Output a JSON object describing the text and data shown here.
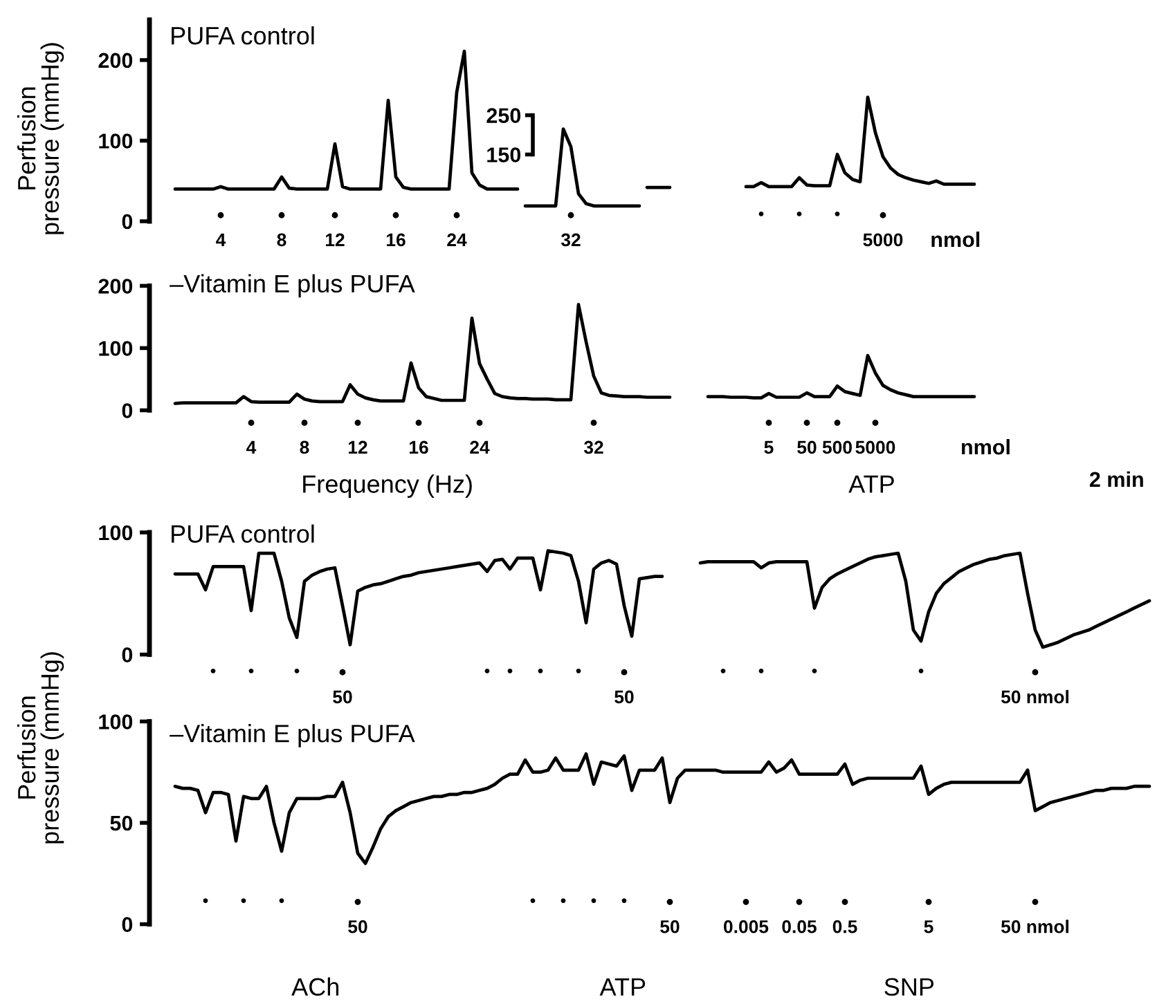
{
  "chart_data": [
    {
      "type": "line",
      "title": "PUFA control",
      "ylabel": "Perfusion\npressure (mmHg)",
      "categories": [
        null,
        null,
        null,
        null,
        null,
        null,
        null,
        null,
        null,
        "4",
        null,
        null,
        null,
        null,
        null,
        null,
        null,
        "8",
        null,
        null,
        null,
        null,
        null,
        null,
        "12",
        null,
        null,
        null,
        null,
        null,
        null,
        null,
        "16",
        null,
        null,
        null,
        null,
        null,
        null,
        null,
        "24",
        null,
        null,
        null,
        null,
        null,
        null,
        null,
        null,
        null,
        null,
        null,
        null,
        null,
        null,
        "32",
        null,
        null,
        null,
        null,
        null,
        null,
        null,
        null,
        null,
        null,
        null,
        null,
        null,
        null,
        null,
        null,
        null,
        null,
        null,
        null,
        null,
        null,
        null,
        null,
        "•",
        null,
        null,
        null,
        null,
        "•",
        null,
        null,
        null,
        null,
        "•",
        null,
        null,
        null,
        null,
        null,
        "5000",
        null,
        null,
        null,
        null,
        null,
        null,
        null,
        null,
        null,
        null,
        null,
        null,
        null,
        null,
        null,
        null,
        null,
        null,
        null,
        null,
        null,
        null,
        null,
        null,
        null,
        null,
        null,
        null,
        null,
        null,
        null,
        null,
        null,
        null,
        null
      ],
      "ylim": [
        0,
        250
      ],
      "yticks": [
        0,
        100,
        200
      ],
      "y2lim": [
        -20,
        493
      ],
      "y2ticks": [
        150,
        250
      ],
      "tick_labels": "y",
      "series": [
        {
          "color": "#000000",
          "values": [
            null,
            null,
            null,
            40,
            40,
            40,
            40,
            40,
            40,
            43,
            40,
            40,
            40,
            40,
            40,
            40,
            40,
            55,
            41,
            40,
            40,
            40,
            40,
            40,
            96,
            43,
            40,
            40,
            40,
            40,
            40,
            150,
            55,
            42,
            40,
            40,
            40,
            40,
            40,
            40,
            160,
            211,
            60,
            45,
            40,
            40,
            40,
            40,
            40,
            null,
            null,
            null,
            null,
            null,
            null,
            null,
            null,
            null,
            null,
            null,
            null,
            null,
            null,
            null,
            null,
            42,
            42,
            42,
            42,
            null,
            null,
            null,
            null,
            null,
            null,
            null,
            null,
            null,
            43,
            43,
            48,
            43,
            43,
            43,
            43,
            54,
            45,
            44,
            44,
            44,
            83,
            60,
            52,
            49,
            154,
            110,
            80,
            66,
            58,
            54,
            51,
            49,
            47,
            50,
            46,
            46,
            46,
            46,
            46,
            null,
            null,
            null,
            null,
            null,
            null,
            null,
            null,
            null,
            null,
            null,
            null,
            null,
            null,
            null,
            null,
            null,
            null,
            null,
            null,
            null,
            null,
            null
          ]
        },
        {
          "color": "#000000",
          "axis": "y2",
          "values": [
            null,
            null,
            null,
            null,
            null,
            null,
            null,
            null,
            null,
            null,
            null,
            null,
            null,
            null,
            null,
            null,
            null,
            null,
            null,
            null,
            null,
            null,
            null,
            null,
            null,
            null,
            null,
            null,
            null,
            null,
            null,
            null,
            null,
            null,
            null,
            null,
            null,
            null,
            null,
            null,
            null,
            null,
            null,
            null,
            null,
            null,
            null,
            null,
            null,
            19,
            19,
            19,
            19,
            19,
            215,
            170,
            50,
            25,
            19,
            19,
            19,
            19,
            19,
            19,
            19,
            null,
            null,
            null,
            null,
            null,
            null,
            null,
            null,
            null,
            null,
            null,
            null,
            null,
            null,
            null,
            null,
            null,
            null,
            null,
            null,
            null,
            null,
            null,
            null,
            null,
            null,
            null,
            null,
            null,
            null,
            null,
            null,
            null,
            null,
            null,
            null,
            null,
            null,
            null,
            null,
            null,
            null,
            null,
            null,
            null,
            null,
            null,
            null,
            null,
            null,
            null,
            null,
            null,
            null,
            null,
            null,
            null,
            null,
            null,
            null,
            null,
            null,
            null,
            null,
            null,
            null,
            null
          ]
        }
      ],
      "annotations": [
        "nmol"
      ]
    },
    {
      "type": "line",
      "title": "–Vitamin E plus PUFA",
      "categories": [
        null,
        null,
        null,
        null,
        null,
        null,
        null,
        null,
        null,
        null,
        null,
        null,
        null,
        "4",
        null,
        null,
        null,
        null,
        null,
        null,
        "8",
        null,
        null,
        null,
        null,
        null,
        null,
        "12",
        null,
        null,
        null,
        null,
        null,
        null,
        null,
        "16",
        null,
        null,
        null,
        null,
        null,
        null,
        null,
        "24",
        null,
        null,
        null,
        null,
        null,
        null,
        null,
        null,
        null,
        null,
        null,
        null,
        null,
        null,
        "32",
        null,
        null,
        null,
        null,
        null,
        null,
        null,
        null,
        null,
        null,
        null,
        null,
        null,
        null,
        null,
        null,
        null,
        null,
        null,
        null,
        null,
        null,
        "5",
        null,
        null,
        null,
        null,
        "50",
        null,
        null,
        null,
        "500",
        null,
        null,
        null,
        null,
        "5000",
        null,
        null,
        null,
        null,
        null,
        null,
        null,
        null,
        null,
        null,
        null,
        null,
        null,
        null,
        null,
        null,
        null,
        null,
        null,
        null,
        null,
        null,
        null,
        null,
        null,
        null,
        null,
        null,
        null,
        null,
        null,
        null,
        null,
        null,
        null,
        null
      ],
      "ylim": [
        0,
        200
      ],
      "yticks": [
        0,
        100,
        200
      ],
      "tick_labels": "y",
      "series": [
        {
          "color": "#000000",
          "values": [
            null,
            null,
            null,
            11,
            12,
            12,
            12,
            12,
            12,
            12,
            12,
            12,
            22,
            14,
            13,
            13,
            13,
            13,
            13,
            26,
            18,
            15,
            14,
            14,
            14,
            14,
            41,
            26,
            20,
            17,
            15,
            15,
            15,
            15,
            76,
            36,
            22,
            19,
            16,
            16,
            16,
            16,
            148,
            75,
            50,
            27,
            22,
            20,
            19,
            19,
            18,
            18,
            18,
            17,
            17,
            17,
            170,
            110,
            55,
            28,
            24,
            23,
            22,
            22,
            22,
            21,
            21,
            21,
            21,
            null,
            null,
            null,
            null,
            22,
            22,
            22,
            21,
            21,
            21,
            20,
            20,
            27,
            21,
            21,
            21,
            21,
            28,
            22,
            22,
            22,
            39,
            30,
            27,
            24,
            88,
            60,
            40,
            33,
            28,
            25,
            22,
            22,
            22,
            22,
            22,
            22,
            22,
            22,
            22,
            null,
            null,
            null,
            null,
            null,
            null,
            null,
            null,
            null,
            null,
            null,
            null,
            null,
            null,
            null,
            null,
            null,
            null,
            null,
            null,
            null,
            null,
            null
          ]
        }
      ],
      "annotations": [
        "nmol",
        "Frequency (Hz)",
        "ATP",
        "2 min"
      ]
    },
    {
      "type": "line",
      "title": "PUFA control",
      "categories": [
        null,
        null,
        null,
        null,
        null,
        null,
        null,
        null,
        "•",
        null,
        null,
        null,
        null,
        "•",
        null,
        null,
        null,
        null,
        null,
        "•",
        null,
        null,
        null,
        null,
        null,
        "50",
        null,
        null,
        null,
        null,
        null,
        null,
        null,
        null,
        null,
        null,
        null,
        null,
        null,
        null,
        null,
        null,
        null,
        null,
        "•",
        null,
        null,
        "•",
        null,
        null,
        null,
        "•",
        null,
        null,
        null,
        null,
        "•",
        null,
        null,
        null,
        null,
        null,
        "50",
        null,
        null,
        null,
        null,
        null,
        null,
        null,
        null,
        null,
        null,
        null,
        null,
        "•",
        null,
        null,
        null,
        null,
        "•",
        null,
        null,
        null,
        null,
        null,
        null,
        "•",
        null,
        null,
        null,
        null,
        null,
        null,
        null,
        null,
        null,
        null,
        null,
        null,
        null,
        "•",
        null,
        null,
        null,
        null,
        null,
        null,
        null,
        null,
        null,
        null,
        null,
        null,
        null,
        null,
        "50 nmol",
        null,
        null,
        null,
        null,
        null,
        null,
        null,
        null,
        null,
        null,
        null,
        null,
        null,
        null,
        null
      ],
      "ylim": [
        0,
        100
      ],
      "yticks": [
        0,
        100
      ],
      "tick_labels": "y",
      "series": [
        {
          "color": "#000000",
          "values": [
            null,
            null,
            null,
            66,
            66,
            66,
            66,
            53,
            72,
            72,
            72,
            72,
            72,
            36,
            83,
            83,
            83,
            60,
            30,
            14,
            60,
            65,
            68,
            70,
            71,
            40,
            8,
            52,
            55,
            57,
            58,
            60,
            62,
            64,
            65,
            67,
            68,
            69,
            70,
            71,
            72,
            73,
            74,
            75,
            68,
            77,
            78,
            70,
            79,
            79,
            79,
            53,
            85,
            84,
            83,
            81,
            60,
            26,
            70,
            75,
            77,
            74,
            40,
            15,
            62,
            63,
            64,
            64,
            null,
            null,
            null,
            null,
            75,
            76,
            76,
            76,
            76,
            76,
            76,
            76,
            71,
            75,
            76,
            76,
            76,
            76,
            76,
            38,
            55,
            62,
            66,
            69,
            72,
            75,
            78,
            80,
            81,
            82,
            83,
            60,
            20,
            11,
            35,
            50,
            58,
            63,
            68,
            71,
            74,
            76,
            78,
            79,
            81,
            82,
            83,
            50,
            20,
            6,
            8,
            10,
            13,
            16,
            18,
            20,
            23,
            26,
            29,
            32,
            35,
            38,
            41,
            44
          ]
        }
      ]
    },
    {
      "type": "line",
      "title": "–Vitamin E plus PUFA",
      "ylabel": "Perfusion\npressure (mmHg)",
      "categories": [
        null,
        null,
        null,
        null,
        null,
        null,
        null,
        "•",
        null,
        null,
        null,
        null,
        "•",
        null,
        null,
        null,
        null,
        "•",
        null,
        null,
        null,
        null,
        null,
        null,
        null,
        null,
        null,
        "50",
        null,
        null,
        null,
        null,
        null,
        null,
        null,
        null,
        null,
        null,
        null,
        null,
        null,
        null,
        null,
        null,
        null,
        null,
        null,
        null,
        null,
        null,
        "•",
        null,
        null,
        null,
        "•",
        null,
        null,
        null,
        "•",
        null,
        null,
        null,
        "•",
        null,
        null,
        null,
        null,
        null,
        "50",
        null,
        null,
        null,
        null,
        null,
        null,
        null,
        null,
        null,
        "0.005",
        null,
        null,
        null,
        null,
        null,
        null,
        "0.05",
        null,
        null,
        null,
        null,
        null,
        "0.5",
        null,
        null,
        null,
        null,
        null,
        null,
        null,
        null,
        null,
        null,
        "5",
        null,
        null,
        null,
        null,
        null,
        null,
        null,
        null,
        null,
        null,
        null,
        null,
        null,
        "50 nmol",
        null,
        null,
        null,
        null,
        null,
        null,
        null,
        null,
        null,
        null,
        null,
        null,
        null,
        null,
        null
      ],
      "ylim": [
        0,
        100
      ],
      "yticks": [
        0,
        50,
        100
      ],
      "tick_labels": "y",
      "series": [
        {
          "color": "#000000",
          "values": [
            null,
            null,
            null,
            68,
            67,
            67,
            66,
            55,
            65,
            65,
            64,
            41,
            63,
            62,
            62,
            68,
            50,
            36,
            55,
            62,
            62,
            62,
            62,
            63,
            63,
            70,
            55,
            35,
            30,
            38,
            47,
            53,
            56,
            58,
            60,
            61,
            62,
            63,
            63,
            64,
            64,
            65,
            65,
            66,
            67,
            69,
            72,
            74,
            74,
            81,
            75,
            75,
            76,
            82,
            76,
            76,
            76,
            84,
            69,
            80,
            79,
            78,
            83,
            66,
            76,
            76,
            76,
            82,
            60,
            72,
            76,
            76,
            76,
            76,
            76,
            75,
            75,
            75,
            75,
            75,
            75,
            80,
            75,
            77,
            81,
            74,
            74,
            74,
            74,
            74,
            74,
            79,
            69,
            71,
            72,
            72,
            72,
            72,
            72,
            72,
            72,
            78,
            64,
            67,
            69,
            70,
            70,
            70,
            70,
            70,
            70,
            70,
            70,
            70,
            70,
            76,
            56,
            58,
            60,
            61,
            62,
            63,
            64,
            65,
            66,
            66,
            67,
            67,
            67,
            68,
            68,
            68
          ]
        }
      ],
      "annotations": [
        "ACh",
        "ATP",
        "SNP"
      ]
    }
  ]
}
